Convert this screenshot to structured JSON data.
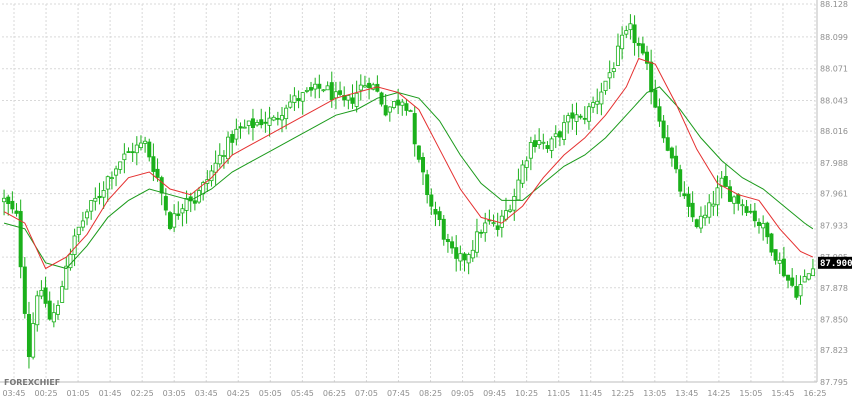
{
  "brand_label": "FOREXCHIEF",
  "colors": {
    "background": "#ffffff",
    "grid": "#d9d9d9",
    "candle_body": "#1bb01b",
    "candle_wick": "#1bb01b",
    "ma_fast": "#e53030",
    "ma_slow": "#1a9a1a",
    "price_tag_bg": "#000000",
    "price_tag_text": "#ffffff"
  },
  "chart_data": {
    "type": "candlestick",
    "title": "",
    "xlabel": "",
    "ylabel": "",
    "grid": true,
    "ylim": [
      87.795,
      88.128
    ],
    "y_ticks": [
      "88.128",
      "88.099",
      "88.071",
      "88.043",
      "88.016",
      "87.988",
      "87.961",
      "87.933",
      "87.905",
      "87.878",
      "87.850",
      "87.823",
      "87.795"
    ],
    "x_ticks": [
      "03:45",
      "00:25",
      "01:05",
      "01:45",
      "02:25",
      "03:05",
      "03:45",
      "04:25",
      "05:05",
      "05:45",
      "06:25",
      "07:05",
      "07:45",
      "08:25",
      "09:05",
      "09:45",
      "10:25",
      "11:05",
      "11:45",
      "12:25",
      "13:05",
      "13:45",
      "14:25",
      "15:05",
      "15:45",
      "16:25"
    ],
    "current_price": "87.900",
    "series": [
      {
        "name": "",
        "kind": "ohlc_path",
        "anchors": [
          [
            0,
            87.955
          ],
          [
            3,
            87.94
          ],
          [
            6,
            87.82
          ],
          [
            8,
            87.875
          ],
          [
            10,
            87.865
          ],
          [
            11,
            87.85
          ],
          [
            13,
            87.86
          ],
          [
            15,
            87.9
          ],
          [
            18,
            87.93
          ],
          [
            20,
            87.945
          ],
          [
            23,
            87.96
          ],
          [
            25,
            87.975
          ],
          [
            28,
            87.99
          ],
          [
            31,
            88.0
          ],
          [
            34,
            88.005
          ],
          [
            37,
            87.975
          ],
          [
            40,
            87.935
          ],
          [
            42,
            87.945
          ],
          [
            44,
            87.96
          ],
          [
            46,
            87.955
          ],
          [
            50,
            87.98
          ],
          [
            53,
            88.0
          ],
          [
            56,
            88.015
          ],
          [
            59,
            88.02
          ],
          [
            62,
            88.025
          ],
          [
            65,
            88.025
          ],
          [
            68,
            88.04
          ],
          [
            71,
            88.045
          ],
          [
            74,
            88.05
          ],
          [
            77,
            88.055
          ],
          [
            80,
            88.045
          ],
          [
            82,
            88.04
          ],
          [
            84,
            88.045
          ],
          [
            86,
            88.055
          ],
          [
            88,
            88.06
          ],
          [
            90,
            88.05
          ],
          [
            92,
            88.035
          ],
          [
            94,
            88.04
          ],
          [
            96,
            88.045
          ],
          [
            98,
            88.035
          ],
          [
            99,
            88.0
          ],
          [
            101,
            87.975
          ],
          [
            103,
            87.95
          ],
          [
            105,
            87.935
          ],
          [
            107,
            87.915
          ],
          [
            109,
            87.9
          ],
          [
            111,
            87.905
          ],
          [
            113,
            87.915
          ],
          [
            115,
            87.93
          ],
          [
            117,
            87.935
          ],
          [
            119,
            87.93
          ],
          [
            121,
            87.945
          ],
          [
            123,
            87.96
          ],
          [
            125,
            87.985
          ],
          [
            127,
            88.005
          ],
          [
            129,
            88.01
          ],
          [
            131,
            88.0
          ],
          [
            133,
            88.01
          ],
          [
            135,
            88.02
          ],
          [
            137,
            88.03
          ],
          [
            139,
            88.025
          ],
          [
            141,
            88.035
          ],
          [
            143,
            88.045
          ],
          [
            145,
            88.06
          ],
          [
            147,
            88.075
          ],
          [
            149,
            88.095
          ],
          [
            151,
            88.105
          ],
          [
            153,
            88.09
          ],
          [
            155,
            88.07
          ],
          [
            157,
            88.04
          ],
          [
            159,
            88.015
          ],
          [
            161,
            87.99
          ],
          [
            163,
            87.965
          ],
          [
            165,
            87.945
          ],
          [
            167,
            87.935
          ],
          [
            169,
            87.94
          ],
          [
            171,
            87.955
          ],
          [
            173,
            87.97
          ],
          [
            175,
            87.96
          ],
          [
            177,
            87.955
          ],
          [
            179,
            87.95
          ],
          [
            181,
            87.94
          ],
          [
            183,
            87.93
          ],
          [
            185,
            87.915
          ],
          [
            187,
            87.9
          ],
          [
            189,
            87.885
          ],
          [
            191,
            87.875
          ],
          [
            193,
            87.885
          ],
          [
            195,
            87.895
          ]
        ],
        "candle_count": 196
      },
      {
        "name": "",
        "kind": "moving_average_fast",
        "points": [
          [
            0,
            87.945
          ],
          [
            5,
            87.935
          ],
          [
            10,
            87.895
          ],
          [
            15,
            87.905
          ],
          [
            20,
            87.925
          ],
          [
            25,
            87.955
          ],
          [
            30,
            87.975
          ],
          [
            35,
            87.98
          ],
          [
            40,
            87.965
          ],
          [
            45,
            87.96
          ],
          [
            50,
            87.975
          ],
          [
            55,
            87.995
          ],
          [
            60,
            88.005
          ],
          [
            65,
            88.015
          ],
          [
            70,
            88.025
          ],
          [
            75,
            88.035
          ],
          [
            80,
            88.045
          ],
          [
            85,
            88.05
          ],
          [
            90,
            88.055
          ],
          [
            95,
            88.05
          ],
          [
            100,
            88.035
          ],
          [
            105,
            88.0
          ],
          [
            110,
            87.965
          ],
          [
            115,
            87.94
          ],
          [
            120,
            87.935
          ],
          [
            125,
            87.95
          ],
          [
            130,
            87.975
          ],
          [
            135,
            87.995
          ],
          [
            140,
            88.01
          ],
          [
            145,
            88.03
          ],
          [
            150,
            88.055
          ],
          [
            153,
            88.08
          ],
          [
            157,
            88.075
          ],
          [
            162,
            88.04
          ],
          [
            167,
            88.0
          ],
          [
            172,
            87.97
          ],
          [
            177,
            87.96
          ],
          [
            182,
            87.955
          ],
          [
            187,
            87.93
          ],
          [
            192,
            87.91
          ],
          [
            195,
            87.905
          ]
        ]
      },
      {
        "name": "",
        "kind": "moving_average_slow",
        "points": [
          [
            0,
            87.935
          ],
          [
            5,
            87.93
          ],
          [
            10,
            87.9
          ],
          [
            15,
            87.895
          ],
          [
            20,
            87.915
          ],
          [
            25,
            87.94
          ],
          [
            30,
            87.955
          ],
          [
            35,
            87.965
          ],
          [
            40,
            87.96
          ],
          [
            45,
            87.955
          ],
          [
            50,
            87.965
          ],
          [
            55,
            87.98
          ],
          [
            60,
            87.99
          ],
          [
            65,
            88.0
          ],
          [
            70,
            88.01
          ],
          [
            75,
            88.02
          ],
          [
            80,
            88.03
          ],
          [
            85,
            88.035
          ],
          [
            90,
            88.045
          ],
          [
            95,
            88.05
          ],
          [
            100,
            88.045
          ],
          [
            105,
            88.025
          ],
          [
            110,
            87.995
          ],
          [
            115,
            87.97
          ],
          [
            120,
            87.955
          ],
          [
            125,
            87.955
          ],
          [
            130,
            87.97
          ],
          [
            135,
            87.985
          ],
          [
            140,
            87.995
          ],
          [
            145,
            88.01
          ],
          [
            150,
            88.03
          ],
          [
            155,
            88.05
          ],
          [
            158,
            88.055
          ],
          [
            163,
            88.035
          ],
          [
            168,
            88.01
          ],
          [
            173,
            87.99
          ],
          [
            178,
            87.975
          ],
          [
            183,
            87.965
          ],
          [
            188,
            87.95
          ],
          [
            193,
            87.935
          ],
          [
            195,
            87.93
          ]
        ]
      }
    ]
  }
}
